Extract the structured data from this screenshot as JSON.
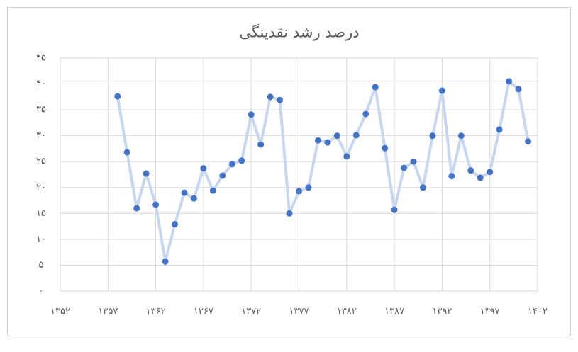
{
  "chart_data": {
    "type": "line",
    "title": "درصد رشد نقدینگی",
    "x": [
      1358,
      1359,
      1360,
      1361,
      1362,
      1363,
      1364,
      1365,
      1366,
      1367,
      1368,
      1369,
      1370,
      1371,
      1372,
      1373,
      1374,
      1375,
      1376,
      1377,
      1378,
      1379,
      1380,
      1381,
      1382,
      1383,
      1384,
      1385,
      1386,
      1387,
      1388,
      1389,
      1390,
      1391,
      1392,
      1393,
      1394,
      1395,
      1396,
      1397,
      1398,
      1399,
      1400,
      1401
    ],
    "series": [
      {
        "color": "#4472c4",
        "line_color": "#c9d7ee",
        "values": [
          37.6,
          26.8,
          16.0,
          22.7,
          16.7,
          5.7,
          12.9,
          19.0,
          17.9,
          23.7,
          19.4,
          22.3,
          24.5,
          25.2,
          34.1,
          28.3,
          37.5,
          36.9,
          15.0,
          19.3,
          20.0,
          29.1,
          28.7,
          30.0,
          26.0,
          30.1,
          34.2,
          39.4,
          27.6,
          15.7,
          23.8,
          25.0,
          20.0,
          30.0,
          38.7,
          22.2,
          30.0,
          23.3,
          21.9,
          23.0,
          31.2,
          40.5,
          39.0,
          28.9
        ]
      }
    ],
    "xlim": [
      1352,
      1402
    ],
    "xticks": [
      {
        "value": 1352,
        "label": "۱۳۵۲"
      },
      {
        "value": 1357,
        "label": "۱۳۵۷"
      },
      {
        "value": 1362,
        "label": "۱۳۶۲"
      },
      {
        "value": 1367,
        "label": "۱۳۶۷"
      },
      {
        "value": 1372,
        "label": "۱۳۷۲"
      },
      {
        "value": 1377,
        "label": "۱۳۷۷"
      },
      {
        "value": 1382,
        "label": "۱۳۸۲"
      },
      {
        "value": 1387,
        "label": "۱۳۸۷"
      },
      {
        "value": 1392,
        "label": "۱۳۹۲"
      },
      {
        "value": 1397,
        "label": "۱۳۹۷"
      },
      {
        "value": 1402,
        "label": "۱۴۰۲"
      }
    ],
    "ylim": [
      0,
      45
    ],
    "yticks": [
      {
        "value": 0,
        "label": "۰"
      },
      {
        "value": 5,
        "label": "۵"
      },
      {
        "value": 10,
        "label": "۱۰"
      },
      {
        "value": 15,
        "label": "۱۵"
      },
      {
        "value": 20,
        "label": "۲۰"
      },
      {
        "value": 25,
        "label": "۲۵"
      },
      {
        "value": 30,
        "label": "۳۰"
      },
      {
        "value": 35,
        "label": "۳۵"
      },
      {
        "value": 40,
        "label": "۴۰"
      },
      {
        "value": 45,
        "label": "۴۵"
      }
    ],
    "grid": true
  }
}
